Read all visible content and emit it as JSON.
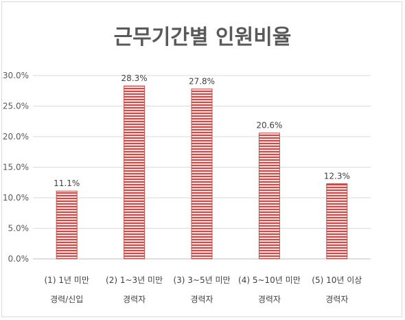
{
  "chart_data": {
    "type": "bar",
    "title": "근무기간별 인원비율",
    "categories": [
      [
        "(1) 1년 미만",
        "경력/신입"
      ],
      [
        "(2) 1~3년 미만",
        "경력자"
      ],
      [
        "(3) 3~5년 미만",
        "경력자"
      ],
      [
        "(4) 5~10년 미만",
        "경력자"
      ],
      [
        "(5) 10년 이상",
        "경력자"
      ]
    ],
    "values": [
      11.1,
      28.3,
      27.8,
      20.6,
      12.3
    ],
    "data_labels": [
      "11.1%",
      "28.3%",
      "27.8%",
      "20.6%",
      "12.3%"
    ],
    "ylim": [
      0,
      30
    ],
    "yticks": [
      0,
      5,
      10,
      15,
      20,
      25,
      30
    ],
    "ytick_labels": [
      "0.0%",
      "5.0%",
      "10.0%",
      "15.0%",
      "20.0%",
      "25.0%",
      "30.0%"
    ],
    "grid": true,
    "legend": "none",
    "bar_color": "#c0504d",
    "bar_stripe_color": "#f2dcdb"
  }
}
